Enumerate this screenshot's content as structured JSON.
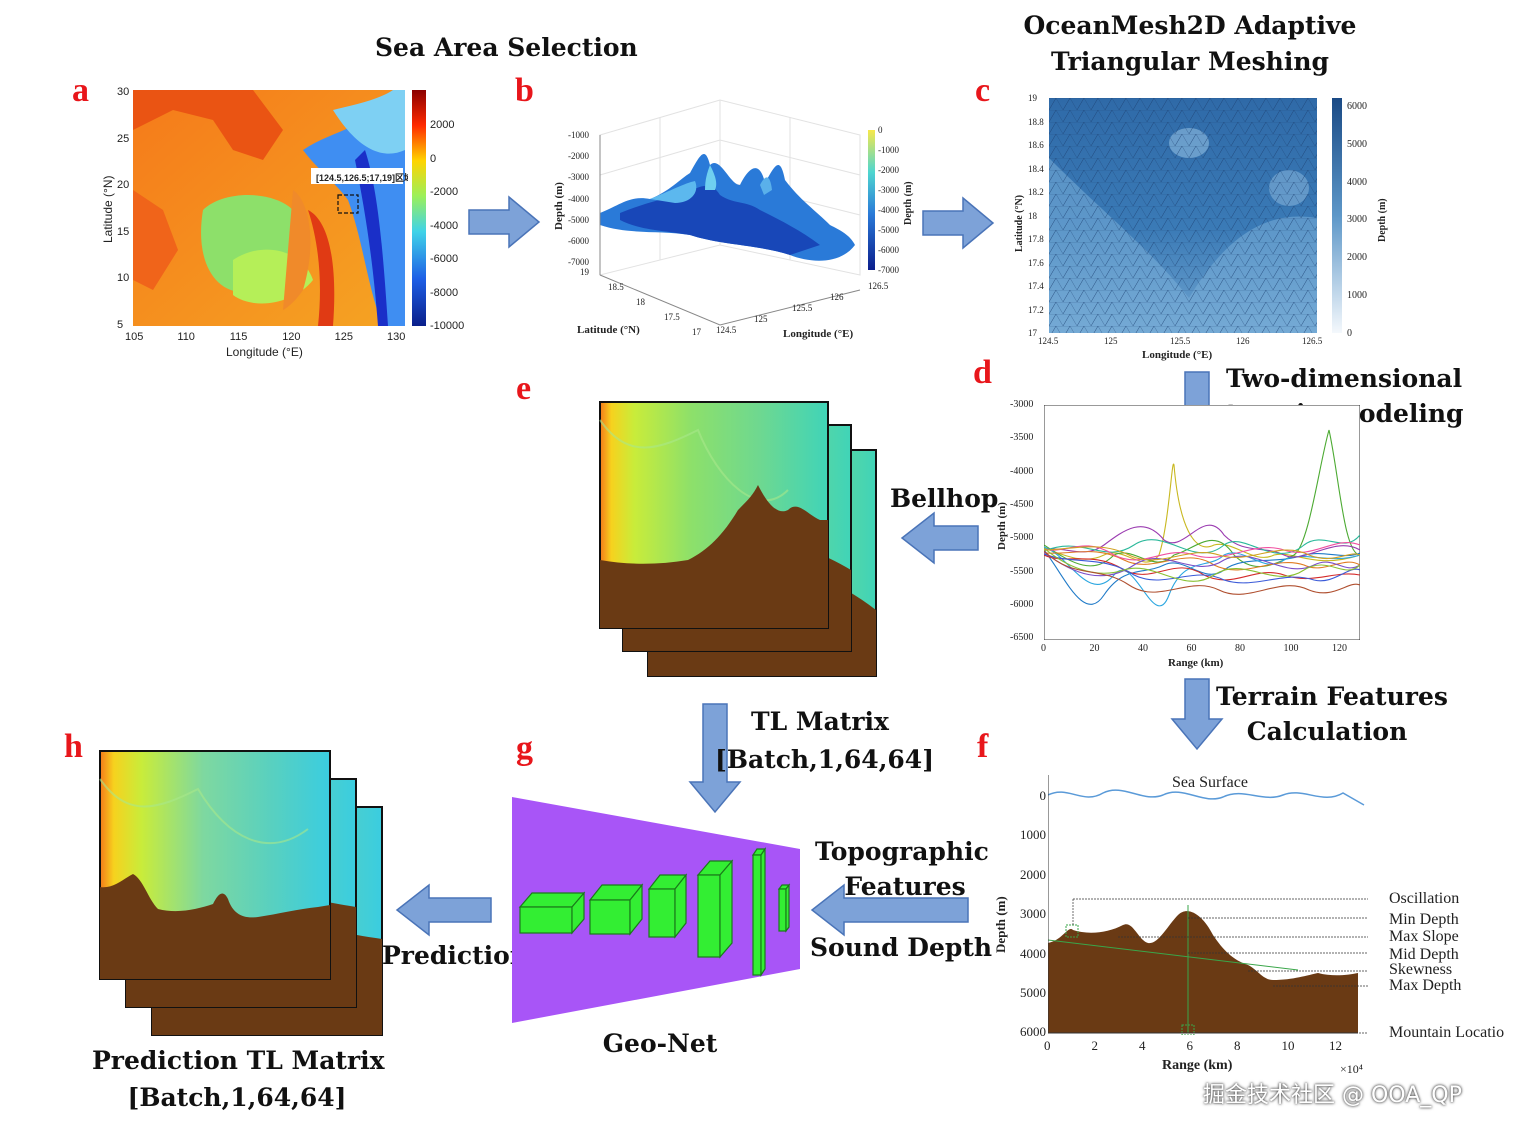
{
  "titles": {
    "sea_area": "Sea Area Selection",
    "mesh_line1": "OceanMesh2D Adaptive",
    "mesh_line2": "Triangular Meshing",
    "terrain_line1": "Two-dimensional",
    "terrain_line2": "terrain modeling",
    "bellhop": "Bellhop",
    "tl_line1": "TL Matrix",
    "tl_line2": "[Batch,1,64,64]",
    "features_line1": "Terrain Features",
    "features_line2": "Calculation",
    "topo_line1": "Topographic",
    "topo_line2": "Features",
    "sound_depth": "Sound Depth",
    "prediction": "Prediction",
    "geonet": "Geo-Net",
    "pred_tl_line1": "Prediction TL Matrix",
    "pred_tl_line2": "[Batch,1,64,64]"
  },
  "panels": {
    "a": "a",
    "b": "b",
    "c": "c",
    "d": "d",
    "e": "e",
    "f": "f",
    "g": "g",
    "h": "h"
  },
  "panel_a": {
    "xlabel": "Longitude (°E)",
    "ylabel": "Latitude (°N)",
    "xticks": [
      "105",
      "110",
      "115",
      "120",
      "125",
      "130"
    ],
    "yticks": [
      "30",
      "25",
      "20",
      "15",
      "10",
      "5"
    ],
    "cbar_ticks": [
      "2000",
      "0",
      "-2000",
      "-4000",
      "-6000",
      "-8000",
      "-10000"
    ],
    "region_label": "[124.5,126.5;17,19]区域"
  },
  "panel_b": {
    "zlabel": "Depth (m)",
    "xlabel": "Latitude (°N)",
    "ylabel": "Longitude (°E)",
    "cbar_label": "Depth (m)",
    "zticks": [
      "-1000",
      "-2000",
      "-3000",
      "-4000",
      "-5000",
      "-6000",
      "-7000"
    ],
    "lat_ticks": [
      "19",
      "18.5",
      "18",
      "17.5",
      "17"
    ],
    "lon_ticks": [
      "124.5",
      "125",
      "125.5",
      "126",
      "126.5"
    ],
    "cbar_ticks": [
      "0",
      "-1000",
      "-2000",
      "-3000",
      "-4000",
      "-5000",
      "-6000",
      "-7000"
    ]
  },
  "panel_c": {
    "xlabel": "Longitude (°E)",
    "ylabel": "Latitude (°N)",
    "cbar_label": "Depth (m)",
    "yticks": [
      "19",
      "18.8",
      "18.6",
      "18.4",
      "18.2",
      "18",
      "17.8",
      "17.6",
      "17.4",
      "17.2",
      "17"
    ],
    "xticks": [
      "124.5",
      "125",
      "125.5",
      "126",
      "126.5"
    ],
    "cbar_ticks": [
      "6000",
      "5000",
      "4000",
      "3000",
      "2000",
      "1000",
      "0"
    ]
  },
  "panel_d": {
    "xlabel": "Range (km)",
    "ylabel": "Depth (m)",
    "yticks": [
      "-3000",
      "-3500",
      "-4000",
      "-4500",
      "-5000",
      "-5500",
      "-6000",
      "-6500"
    ],
    "xticks": [
      "0",
      "20",
      "40",
      "60",
      "80",
      "100",
      "120"
    ]
  },
  "panel_f": {
    "sea_surface": "Sea Surface",
    "xlabel": "Range (km)",
    "ylabel": "Depth (m)",
    "x_exponent": "×10⁴",
    "yticks": [
      "0",
      "1000",
      "2000",
      "3000",
      "4000",
      "5000",
      "6000"
    ],
    "xticks": [
      "0",
      "2",
      "4",
      "6",
      "8",
      "10",
      "12"
    ],
    "annotations": [
      "Oscillation",
      "Min Depth",
      "Max Slope",
      "Mid Depth",
      "Skewness",
      "Max Depth",
      "Mountain Locatio"
    ]
  },
  "watermark": "掘金技术社区 @ OOA_QP",
  "colors": {
    "letter": "#e8161b",
    "arrow": "#7da2d8",
    "arrow_stroke": "#4a74b8",
    "seabed": "#6a3a14",
    "geonet_bg": "#a855f7",
    "block": "#33ee33"
  }
}
